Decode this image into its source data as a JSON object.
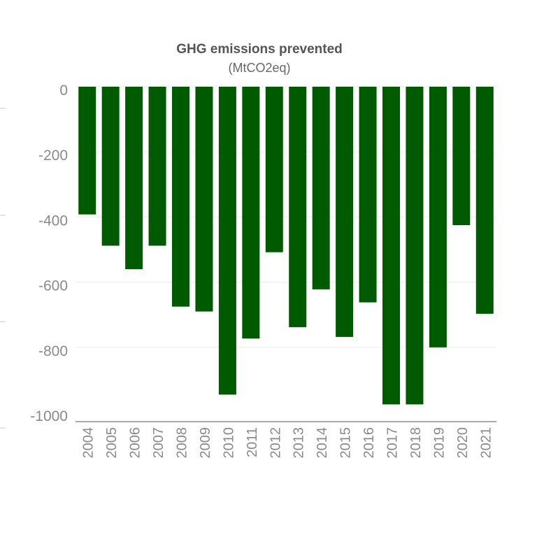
{
  "chart_data": {
    "type": "bar",
    "title": "GHG emissions prevented",
    "subtitle": "(MtCO2eq)",
    "xlabel": "",
    "ylabel": "",
    "categories": [
      "2004",
      "2005",
      "2006",
      "2007",
      "2008",
      "2009",
      "2010",
      "2011",
      "2012",
      "2013",
      "2014",
      "2015",
      "2016",
      "2017",
      "2018",
      "2019",
      "2020",
      "2021"
    ],
    "values": [
      -392,
      -488,
      -560,
      -488,
      -675,
      -690,
      -945,
      -773,
      -508,
      -738,
      -622,
      -768,
      -662,
      -975,
      -975,
      -800,
      -425,
      -697
    ],
    "ylim": [
      -1000,
      0
    ],
    "yticks": [
      0,
      -200,
      -400,
      -600,
      -800,
      -1000
    ],
    "ytick_labels": [
      "0",
      "-200",
      "-400",
      "-600",
      "-800",
      "-1000"
    ],
    "grid": true,
    "legend": "none",
    "bar_color": "#005a00"
  }
}
